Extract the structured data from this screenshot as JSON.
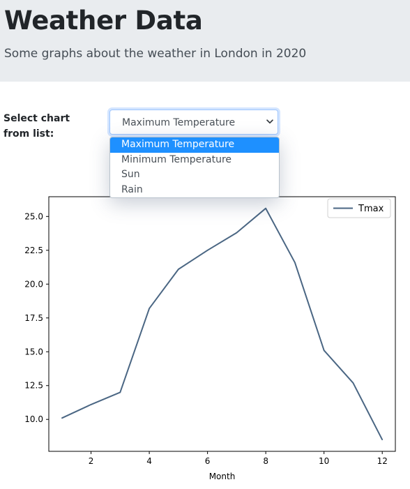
{
  "header": {
    "title": "Weather Data",
    "subtitle": "Some graphs about the weather in London in 2020"
  },
  "chart_select": {
    "label": "Select chart from list:",
    "selected": "Maximum Temperature",
    "options": [
      "Maximum Temperature",
      "Minimum Temperature",
      "Sun",
      "Rain"
    ],
    "highlighted_index": 0
  },
  "icons": {
    "select_chevron": "chevron-down-icon"
  },
  "colors": {
    "header_bg": "#e9ecef",
    "option_highlight": "#1e90ff",
    "series_line": "#4a6683"
  },
  "chart_data": {
    "type": "line",
    "title": "",
    "xlabel": "Month",
    "ylabel": "",
    "x": [
      1,
      2,
      3,
      4,
      5,
      6,
      7,
      8,
      9,
      10,
      11,
      12
    ],
    "series": [
      {
        "name": "Tmax",
        "values": [
          10.1,
          11.1,
          12.0,
          18.2,
          21.1,
          22.5,
          23.8,
          25.6,
          21.6,
          15.1,
          12.7,
          8.5
        ]
      }
    ],
    "xticks": [
      "2",
      "4",
      "6",
      "8",
      "10",
      "12"
    ],
    "yticks": [
      "10.0",
      "12.5",
      "15.0",
      "17.5",
      "20.0",
      "22.5",
      "25.0"
    ],
    "xlim": [
      0.55,
      12.45
    ],
    "ylim": [
      7.64,
      26.46
    ],
    "legend_position": "top-right",
    "grid": false
  }
}
